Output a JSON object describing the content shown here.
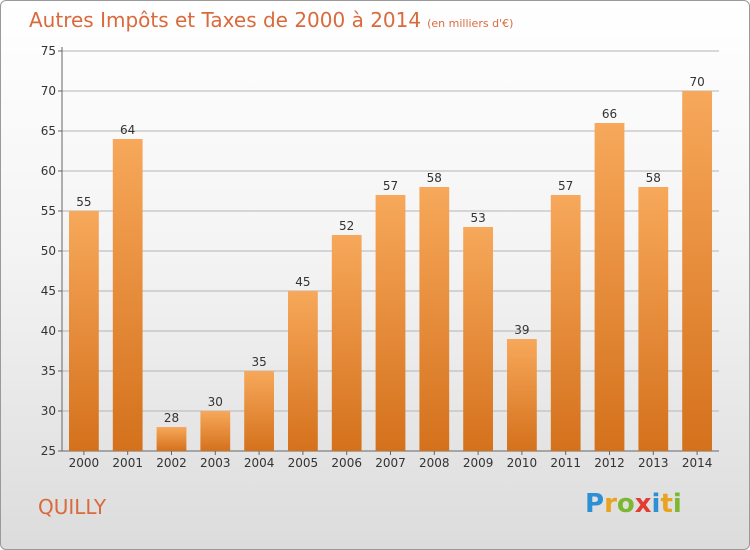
{
  "header": {
    "title": "Autres Impôts et Taxes de 2000 à 2014",
    "unit": "(en milliers d'€)"
  },
  "footer": {
    "commune": "QUILLY",
    "logo": "Proxiti"
  },
  "colors": {
    "title": "#d96a3c",
    "bar_light": "#f7a85a",
    "bar_dark": "#d4711c",
    "axis": "#666666",
    "grid": "#b4b4b4"
  },
  "chart_data": {
    "type": "bar",
    "categories": [
      "2000",
      "2001",
      "2002",
      "2003",
      "2004",
      "2005",
      "2006",
      "2007",
      "2008",
      "2009",
      "2010",
      "2011",
      "2012",
      "2013",
      "2014"
    ],
    "values": [
      55,
      64,
      28,
      30,
      35,
      45,
      52,
      57,
      58,
      53,
      39,
      57,
      66,
      58,
      70
    ],
    "title": "Autres Impôts et Taxes de 2000 à 2014",
    "xlabel": "",
    "ylabel": "",
    "ylim": [
      25,
      75
    ],
    "yticks": [
      25,
      30,
      35,
      40,
      45,
      50,
      55,
      60,
      65,
      70,
      75
    ],
    "grid": true,
    "data_labels": true
  }
}
